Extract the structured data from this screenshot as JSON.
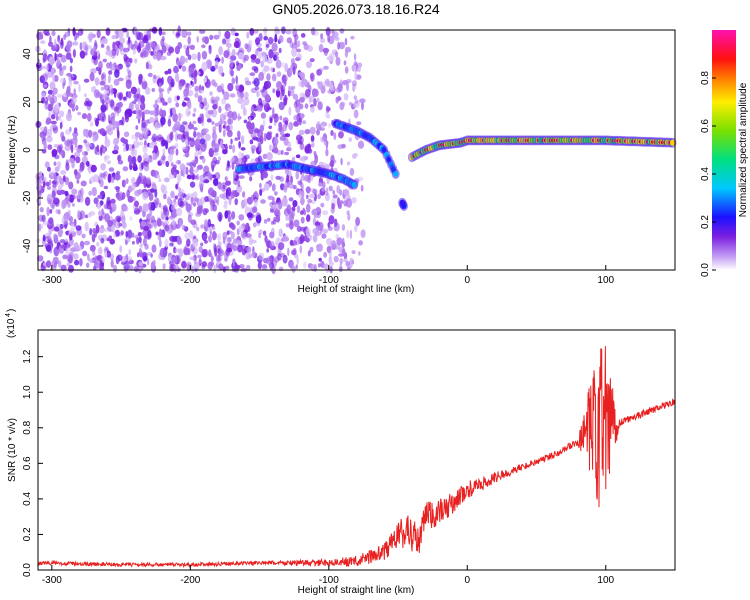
{
  "title": "GN05.2026.073.18.16.R24",
  "colors": {
    "snr_line": "#e82020",
    "background": "#ffffff",
    "axis": "#000000",
    "spectro_faint": "#d7c7f4",
    "spectro_strong": "#6b16e8"
  },
  "chart_data": [
    {
      "type": "heatmap",
      "title": "",
      "xlabel": "Height of straight line (km)",
      "ylabel": "Frequency (Hz)",
      "xlim": [
        -310,
        150
      ],
      "ylim": [
        -50,
        50
      ],
      "xticks": [
        -300,
        -200,
        -100,
        0,
        100
      ],
      "xtick_labels": [
        "-300",
        "-200",
        "-100",
        "0",
        "100"
      ],
      "yticks": [
        -40,
        -20,
        0,
        20,
        40
      ],
      "ytick_labels": [
        "-40",
        "-20",
        "0",
        "20",
        "40"
      ],
      "colorbar": {
        "label": "Normalized spectral amplitude",
        "range": [
          0.0,
          1.0
        ],
        "ticks": [
          0.0,
          0.2,
          0.4,
          0.6,
          0.8
        ],
        "tick_labels": [
          "0.0",
          "0.2",
          "0.4",
          "0.6",
          "0.8"
        ],
        "colormap": "rainbow (purple-blue-cyan-green-yellow-red-magenta)"
      },
      "noise_region": {
        "x_range": [
          -310,
          -75
        ],
        "description": "scattered low-amplitude speckle across all frequencies"
      },
      "tracks": [
        {
          "name": "",
          "points": [
            [
              -165,
              -8
            ],
            [
              -150,
              -7
            ],
            [
              -130,
              -6
            ],
            [
              -115,
              -8
            ],
            [
              -100,
              -10
            ],
            [
              -90,
              -12
            ],
            [
              -80,
              -15
            ]
          ],
          "amplitude": 0.35
        },
        {
          "name": "",
          "points": [
            [
              -95,
              11
            ],
            [
              -80,
              8
            ],
            [
              -70,
              5
            ],
            [
              -60,
              0
            ],
            [
              -55,
              -6
            ],
            [
              -50,
              -12
            ]
          ],
          "amplitude": 0.35
        },
        {
          "name": "",
          "points": [
            [
              -47,
              -22
            ],
            [
              -45,
              -24
            ]
          ],
          "amplitude": 0.3
        },
        {
          "name": "",
          "points": [
            [
              -40,
              -3
            ],
            [
              -30,
              0
            ],
            [
              -20,
              2
            ],
            [
              -5,
              3
            ],
            [
              0,
              4
            ],
            [
              20,
              4
            ],
            [
              60,
              4
            ],
            [
              100,
              4
            ],
            [
              150,
              3
            ]
          ],
          "amplitude": 0.75
        }
      ]
    },
    {
      "type": "line",
      "title": "",
      "xlabel": "Height of straight line (km)",
      "ylabel": "SNR (10 * v/v)",
      "scale_label": "(x10",
      "scale_exponent": "4",
      "xlim": [
        -310,
        150
      ],
      "ylim": [
        0,
        1.35
      ],
      "xticks": [
        -300,
        -200,
        -100,
        0,
        100
      ],
      "xtick_labels": [
        "-300",
        "-200",
        "-100",
        "0",
        "100"
      ],
      "yticks": [
        0.0,
        0.2,
        0.4,
        0.6,
        0.8,
        1.0,
        1.2
      ],
      "ytick_labels": [
        "0.0",
        "0.2",
        "0.4",
        "0.6",
        "0.8",
        "1.0",
        "1.2"
      ],
      "series": [
        {
          "name": "",
          "x": [
            -310,
            -250,
            -200,
            -150,
            -100,
            -80,
            -60,
            -50,
            -40,
            -35,
            -30,
            -20,
            -10,
            0,
            10,
            20,
            40,
            60,
            80,
            95,
            100,
            110,
            130,
            150
          ],
          "y": [
            0.04,
            0.03,
            0.03,
            0.04,
            0.04,
            0.05,
            0.1,
            0.2,
            0.22,
            0.15,
            0.3,
            0.32,
            0.38,
            0.45,
            0.48,
            0.52,
            0.58,
            0.64,
            0.72,
            0.78,
            0.8,
            0.83,
            0.89,
            0.95
          ],
          "noise_amplitude": [
            0.01,
            0.01,
            0.01,
            0.01,
            0.02,
            0.03,
            0.05,
            0.08,
            0.12,
            0.08,
            0.1,
            0.08,
            0.06,
            0.05,
            0.04,
            0.03,
            0.02,
            0.02,
            0.02,
            0.5,
            0.5,
            0.02,
            0.02,
            0.02
          ]
        }
      ]
    }
  ]
}
